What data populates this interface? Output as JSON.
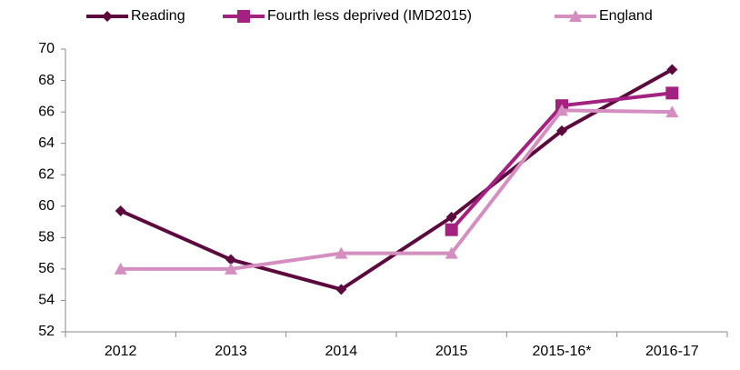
{
  "chart_data": {
    "type": "line",
    "categories": [
      "2012",
      "2013",
      "2014",
      "2015",
      "2015-16*",
      "2016-17"
    ],
    "series": [
      {
        "name": "Reading",
        "color": "#5c0a3e",
        "marker": "diamond",
        "values": [
          59.7,
          56.6,
          54.7,
          59.3,
          64.8,
          68.7
        ]
      },
      {
        "name": "Fourth less deprived (IMD2015)",
        "color": "#a3217f",
        "marker": "square",
        "values": [
          null,
          null,
          null,
          58.5,
          66.4,
          67.2
        ]
      },
      {
        "name": "England",
        "color": "#d48fc0",
        "marker": "triangle",
        "values": [
          56,
          56,
          57,
          57,
          66.1,
          66
        ]
      }
    ],
    "ylim": [
      52,
      70
    ],
    "yticks": [
      52,
      54,
      56,
      58,
      60,
      62,
      64,
      66,
      68,
      70
    ],
    "grid": false,
    "legend": "top"
  }
}
